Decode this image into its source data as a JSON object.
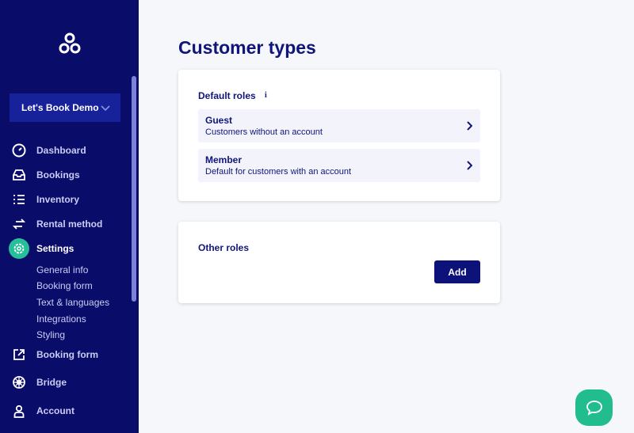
{
  "sidebar": {
    "org_selector": "Let's Book Demo",
    "items": [
      {
        "label": "Dashboard",
        "icon": "dashboard-icon"
      },
      {
        "label": "Bookings",
        "icon": "inbox-icon"
      },
      {
        "label": "Inventory",
        "icon": "list-icon"
      },
      {
        "label": "Rental method",
        "icon": "arrows-icon"
      },
      {
        "label": "Settings",
        "icon": "gear-icon",
        "active": true
      },
      {
        "label": "Booking form",
        "icon": "external-link-icon"
      },
      {
        "label": "Bridge",
        "icon": "wheel-icon"
      },
      {
        "label": "Account",
        "icon": "user-icon"
      }
    ],
    "settings_sub": [
      "General info",
      "Booking form",
      "Text & languages",
      "Integrations",
      "Styling"
    ]
  },
  "main": {
    "title": "Customer types",
    "default_roles": {
      "title": "Default roles",
      "roles": [
        {
          "name": "Guest",
          "description": "Customers without an account"
        },
        {
          "name": "Member",
          "description": "Default for customers with an account"
        }
      ]
    },
    "other_roles": {
      "title": "Other roles",
      "add_label": "Add"
    }
  },
  "colors": {
    "sidebar": "#0a0c6a",
    "accent": "#26bf9a",
    "primary": "#0d127a"
  }
}
